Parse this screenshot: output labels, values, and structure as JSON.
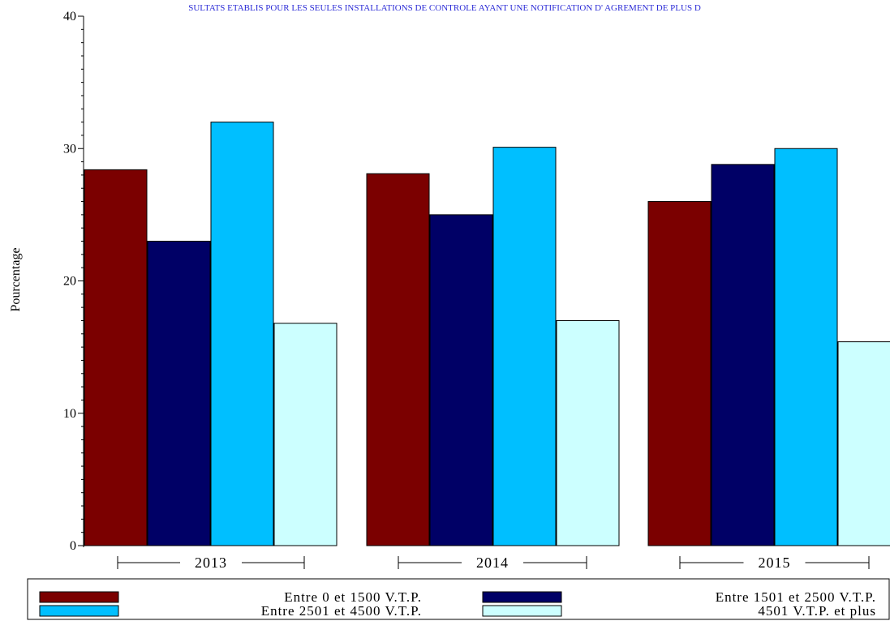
{
  "colors": {
    "series1": "#7b0000",
    "series2": "#000066",
    "series3": "#00bfff",
    "series4": "#ccffff",
    "title": "#2b2bd6"
  },
  "chart_data": {
    "type": "bar",
    "title": "SULTATS ETABLIS POUR LES SEULES INSTALLATIONS DE CONTROLE AYANT UNE NOTIFICATION D' AGREMENT DE PLUS D",
    "xlabel": "",
    "ylabel": "Pourcentage",
    "ylim": [
      0,
      40
    ],
    "yticks": [
      "0",
      "10",
      "20",
      "30",
      "40"
    ],
    "categories": [
      "2013",
      "2014",
      "2015"
    ],
    "grid": false,
    "legend_position": "bottom",
    "series": [
      {
        "name": "Entre 0 et 1500 V.T.P.",
        "values": [
          28.4,
          28.1,
          26.0
        ]
      },
      {
        "name": "Entre 1501 et 2500 V.T.P.",
        "values": [
          23.0,
          25.0,
          28.8
        ]
      },
      {
        "name": "Entre 2501 et 4500 V.T.P.",
        "values": [
          32.0,
          30.1,
          30.0
        ]
      },
      {
        "name": "4501 V.T.P. et plus",
        "values": [
          16.8,
          17.0,
          15.4
        ]
      }
    ]
  }
}
